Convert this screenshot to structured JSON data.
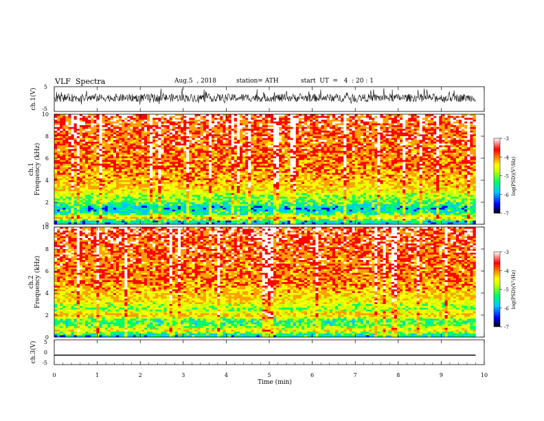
{
  "header": {
    "title": "VLF  Spectra",
    "date": "Aug.5  , 2018",
    "station": "station= ATH",
    "start": "start  UT  =   4  : 20 : 1"
  },
  "colors": {
    "spectrogram_scale": [
      "#000000",
      "#0000ff",
      "#00c8ff",
      "#00ff64",
      "#c8ff00",
      "#ffff00",
      "#ffa000",
      "#ff0000",
      "#ffffff"
    ],
    "waveform": "#000000"
  },
  "chart_data": [
    {
      "type": "line",
      "panel": "ch1-waveform",
      "ylabel": "ch.1(V)",
      "ylim": [
        -5,
        5
      ],
      "yticks": [
        "5",
        "-5"
      ],
      "description_series": {
        "name": "",
        "mean": 0.5,
        "amplitude_range": [
          -2.5,
          4.5
        ]
      },
      "xlim": [
        0,
        10
      ]
    },
    {
      "type": "heatmap",
      "panel": "ch1-spectrogram",
      "ylabel_top": "ch.1",
      "ylabel": "Frequency  (kHz)",
      "ylim": [
        0,
        10
      ],
      "yticks": [
        "0",
        "2",
        "4",
        "6",
        "8",
        "10"
      ],
      "xlim": [
        0,
        9.8
      ],
      "colorbar": {
        "label": "log(PSD)(V²/Hz)",
        "range": [
          -7,
          -3
        ],
        "ticks": [
          "-3",
          "-4",
          "-5",
          "-6",
          "-7"
        ]
      },
      "band_profile_kHz": [
        {
          "f": 0.2,
          "level": -6.0
        },
        {
          "f": 0.6,
          "level": -4.3
        },
        {
          "f": 1.0,
          "level": -5.6
        },
        {
          "f": 1.5,
          "level": -5.9
        },
        {
          "f": 2.0,
          "level": -5.3
        },
        {
          "f": 2.6,
          "level": -5.0
        },
        {
          "f": 3.2,
          "level": -4.4
        },
        {
          "f": 5.0,
          "level": -3.9
        },
        {
          "f": 8.0,
          "level": -3.7
        },
        {
          "f": 10.0,
          "level": -3.5
        }
      ]
    },
    {
      "type": "heatmap",
      "panel": "ch2-spectrogram",
      "ylabel_top": "ch.2",
      "ylabel": "Frequency  (kHz)",
      "ylim": [
        0,
        10
      ],
      "yticks": [
        "0",
        "2",
        "4",
        "6",
        "8",
        "10"
      ],
      "xlim": [
        0,
        9.8
      ],
      "colorbar": {
        "label": "log(PSD)(V²/Hz)",
        "range": [
          -7,
          -3
        ],
        "ticks": [
          "-3",
          "-4",
          "-5",
          "-6",
          "-7"
        ]
      },
      "band_profile_kHz": [
        {
          "f": 0.2,
          "level": -5.8
        },
        {
          "f": 0.6,
          "level": -4.5
        },
        {
          "f": 1.0,
          "level": -5.2
        },
        {
          "f": 1.5,
          "level": -5.5
        },
        {
          "f": 2.0,
          "level": -4.2
        },
        {
          "f": 2.6,
          "level": -5.1
        },
        {
          "f": 3.3,
          "level": -4.5
        },
        {
          "f": 5.0,
          "level": -3.9
        },
        {
          "f": 8.0,
          "level": -3.7
        },
        {
          "f": 10.0,
          "level": -3.5
        }
      ]
    },
    {
      "type": "line",
      "panel": "ch3-waveform",
      "ylabel": "ch.3(V)",
      "ylim": [
        -5,
        5
      ],
      "yticks": [
        "5",
        "0",
        "-5"
      ],
      "description_series": {
        "name": "",
        "mean": -1.2,
        "amplitude_range": [
          -1.4,
          -1.0
        ]
      },
      "xlim": [
        0,
        10
      ],
      "xlabel": "Time  (min)",
      "xticks": [
        "0",
        "1",
        "2",
        "3",
        "4",
        "5",
        "6",
        "7",
        "8",
        "9",
        "10"
      ]
    }
  ]
}
